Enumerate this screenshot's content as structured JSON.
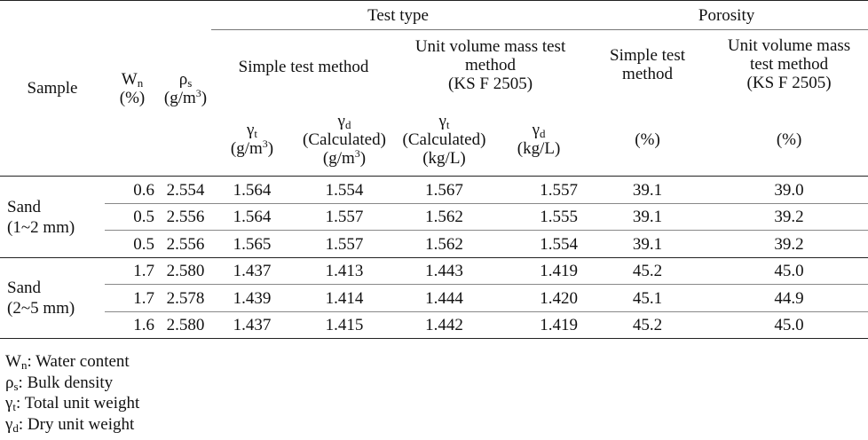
{
  "header": {
    "sample": "Sample",
    "wn_symbol": "W",
    "wn_sub": "n",
    "wn_unit": "(%)",
    "rho_symbol": "ρ",
    "rho_sub": "s",
    "rho_unit_base": "(g/m",
    "rho_unit_sup": "3",
    "rho_unit_close": ")",
    "test_type": "Test type",
    "porosity": "Porosity",
    "simple_test": "Simple test method",
    "unit_volume_line1": "Unit volume mass test",
    "unit_volume_line2": "method",
    "unit_volume_line3": "(KS F 2505)",
    "por_simple_line1": "Simple test",
    "por_simple_line2": "method",
    "por_unit_line1": "Unit volume mass",
    "por_unit_line2": "test method",
    "por_unit_line3": "(KS F 2505)",
    "gamma": "γ",
    "sub_t": "t",
    "sub_d": "d",
    "g_m3_base": "(g/m",
    "sup_3": "3",
    "close": ")",
    "calculated": "(Calculated)",
    "kg_l": "(kg/L)",
    "percent": "(%)"
  },
  "groups": [
    {
      "label_line1": "Sand",
      "label_line2": "(1~2 mm)",
      "rows": [
        {
          "wn": "0.6",
          "rho": "2.554",
          "gt_simple": "1.564",
          "gd_simple": "1.554",
          "gt_unit": "1.567",
          "gd_unit": "1.557",
          "por_simple": "39.1",
          "por_unit": "39.0"
        },
        {
          "wn": "0.5",
          "rho": "2.556",
          "gt_simple": "1.564",
          "gd_simple": "1.557",
          "gt_unit": "1.562",
          "gd_unit": "1.555",
          "por_simple": "39.1",
          "por_unit": "39.2"
        },
        {
          "wn": "0.5",
          "rho": "2.556",
          "gt_simple": "1.565",
          "gd_simple": "1.557",
          "gt_unit": "1.562",
          "gd_unit": "1.554",
          "por_simple": "39.1",
          "por_unit": "39.2"
        }
      ]
    },
    {
      "label_line1": "Sand",
      "label_line2": "(2~5 mm)",
      "rows": [
        {
          "wn": "1.7",
          "rho": "2.580",
          "gt_simple": "1.437",
          "gd_simple": "1.413",
          "gt_unit": "1.443",
          "gd_unit": "1.419",
          "por_simple": "45.2",
          "por_unit": "45.0"
        },
        {
          "wn": "1.7",
          "rho": "2.578",
          "gt_simple": "1.439",
          "gd_simple": "1.414",
          "gt_unit": "1.444",
          "gd_unit": "1.420",
          "por_simple": "45.1",
          "por_unit": "44.9"
        },
        {
          "wn": "1.6",
          "rho": "2.580",
          "gt_simple": "1.437",
          "gd_simple": "1.415",
          "gt_unit": "1.442",
          "gd_unit": "1.419",
          "por_simple": "45.2",
          "por_unit": "45.0"
        }
      ]
    }
  ],
  "notes": [
    {
      "symbol": "W",
      "sub": "n",
      "text": ": Water content"
    },
    {
      "symbol": "ρ",
      "sub": "s",
      "text": ": Bulk density"
    },
    {
      "symbol": "γ",
      "sub": "t",
      "text": ": Total unit weight"
    },
    {
      "symbol": "γ",
      "sub": "d",
      "text": ": Dry unit weight"
    }
  ]
}
